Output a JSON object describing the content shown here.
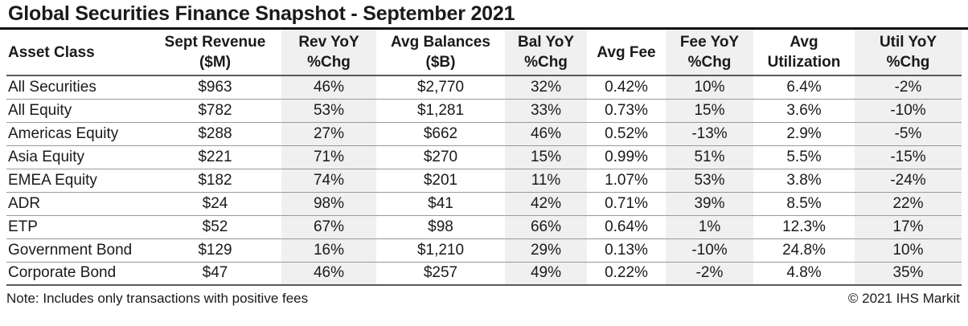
{
  "chart_data": {
    "type": "table",
    "title": "Global Securities Finance Snapshot - September 2021",
    "columns": [
      {
        "id": "asset-class",
        "label": "Asset Class",
        "sub": "",
        "shaded": false
      },
      {
        "id": "sept-revenue",
        "label": "Sept Revenue",
        "sub": "($M)",
        "shaded": false
      },
      {
        "id": "rev-yoy",
        "label": "Rev YoY",
        "sub": "%Chg",
        "shaded": true
      },
      {
        "id": "avg-balances",
        "label": "Avg Balances",
        "sub": "($B)",
        "shaded": false
      },
      {
        "id": "bal-yoy",
        "label": "Bal YoY",
        "sub": "%Chg",
        "shaded": true
      },
      {
        "id": "avg-fee",
        "label": "Avg Fee",
        "sub": "",
        "shaded": false
      },
      {
        "id": "fee-yoy",
        "label": "Fee YoY",
        "sub": "%Chg",
        "shaded": true
      },
      {
        "id": "avg-utilization",
        "label": "Avg",
        "sub": "Utilization",
        "shaded": false
      },
      {
        "id": "util-yoy",
        "label": "Util YoY",
        "sub": "%Chg",
        "shaded": true
      }
    ],
    "rows": [
      [
        "All Securities",
        "$963",
        "46%",
        "$2,770",
        "32%",
        "0.42%",
        "10%",
        "6.4%",
        "-2%"
      ],
      [
        "All Equity",
        "$782",
        "53%",
        "$1,281",
        "33%",
        "0.73%",
        "15%",
        "3.6%",
        "-10%"
      ],
      [
        "Americas Equity",
        "$288",
        "27%",
        "$662",
        "46%",
        "0.52%",
        "-13%",
        "2.9%",
        "-5%"
      ],
      [
        "Asia Equity",
        "$221",
        "71%",
        "$270",
        "15%",
        "0.99%",
        "51%",
        "5.5%",
        "-15%"
      ],
      [
        "EMEA Equity",
        "$182",
        "74%",
        "$201",
        "11%",
        "1.07%",
        "53%",
        "3.8%",
        "-24%"
      ],
      [
        "ADR",
        "$24",
        "98%",
        "$41",
        "42%",
        "0.71%",
        "39%",
        "8.5%",
        "22%"
      ],
      [
        "ETP",
        "$52",
        "67%",
        "$98",
        "66%",
        "0.64%",
        "1%",
        "12.3%",
        "17%"
      ],
      [
        "Government Bond",
        "$129",
        "16%",
        "$1,210",
        "29%",
        "0.13%",
        "-10%",
        "24.8%",
        "10%"
      ],
      [
        "Corporate Bond",
        "$47",
        "46%",
        "$257",
        "49%",
        "0.22%",
        "-2%",
        "4.8%",
        "35%"
      ]
    ],
    "layout": {
      "grid": "horizontal-row-dividers-only",
      "legend": "none"
    }
  },
  "footer": {
    "note": "Note: Includes only transactions with positive fees",
    "copyright": "© 2021 IHS Markit"
  },
  "colors": {
    "shaded_column_bg": "#f0f0f0",
    "row_divider": "#999999",
    "header_divider": "#595959",
    "title_rule": "#111111",
    "text": "#1a1a1a"
  }
}
